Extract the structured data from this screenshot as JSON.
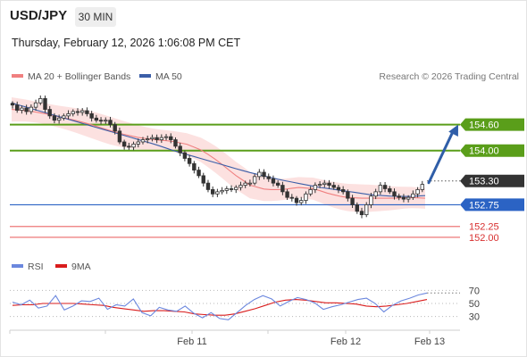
{
  "header": {
    "symbol": "USD/JPY",
    "timeframe": "30 MIN",
    "datetime": "Thursday, February 12, 2026 1:06:08 PM CET",
    "copyright": "Research © 2026 Trading Central"
  },
  "colors": {
    "candle": "#333333",
    "bollinger_band": "#fbd7d5",
    "ma20": "#f08080",
    "ma50": "#3b5ea8",
    "resistance": "#5a9e1a",
    "pivot": "#2b63c4",
    "support": "#ee7878",
    "last_price_label": "#333333",
    "forecast_arrow": "#2f5ea8",
    "rsi": "#6b87de",
    "rsi_ma": "#d91c1c"
  },
  "chart_data": [
    {
      "type": "candlestick",
      "title": "",
      "legend": [
        {
          "name": "MA 20 + Bollinger Bands",
          "color": "#f08080"
        },
        {
          "name": "MA 50",
          "color": "#3b5ea8"
        }
      ],
      "legend_placement": "top-left",
      "x_ticks": [
        "Feb 11",
        "Feb 12",
        "Feb 13"
      ],
      "ylim": [
        151.75,
        155.25
      ],
      "y_tick_labels": [
        "154.60",
        "154.00",
        "153.30",
        "152.75",
        "152.25",
        "152.00"
      ],
      "last_price": 153.3,
      "price_path": [
        155.05,
        154.93,
        154.98,
        154.9,
        155.0,
        155.1,
        155.2,
        154.95,
        154.8,
        154.7,
        154.75,
        154.8,
        154.85,
        154.9,
        154.88,
        154.92,
        154.85,
        154.75,
        154.7,
        154.68,
        154.7,
        154.6,
        154.45,
        154.2,
        154.1,
        154.08,
        154.15,
        154.2,
        154.25,
        154.27,
        154.3,
        154.25,
        154.3,
        154.32,
        154.25,
        154.1,
        153.95,
        153.82,
        153.7,
        153.55,
        153.42,
        153.25,
        153.1,
        153.0,
        153.05,
        153.08,
        153.12,
        153.1,
        153.15,
        153.2,
        153.25,
        153.25,
        153.4,
        153.5,
        153.4,
        153.35,
        153.25,
        153.2,
        153.05,
        152.92,
        152.9,
        152.8,
        152.85,
        153.0,
        153.1,
        153.2,
        153.22,
        153.25,
        153.2,
        153.15,
        153.1,
        153.05,
        152.9,
        152.75,
        152.6,
        152.52,
        152.75,
        152.95,
        153.05,
        153.2,
        153.12,
        153.05,
        152.95,
        152.92,
        152.88,
        152.92,
        153.0,
        153.1,
        153.22
      ],
      "forecast": {
        "from": 153.3,
        "to": 154.6,
        "direction": "up"
      },
      "series": [
        {
          "name": "MA 50",
          "values": [
            155.1,
            154.98,
            154.86,
            154.74,
            154.62,
            154.5,
            154.38,
            154.26,
            154.14,
            154.0,
            153.88,
            153.76,
            153.64,
            153.52,
            153.42,
            153.32,
            153.24,
            153.16,
            153.1,
            153.04,
            152.98,
            152.95,
            152.94,
            152.96
          ]
        },
        {
          "name": "MA 20",
          "values": [
            154.95,
            154.92,
            154.86,
            154.78,
            154.7,
            154.6,
            154.48,
            154.38,
            154.3,
            154.25,
            154.22,
            154.15,
            154.0,
            153.75,
            153.45,
            153.2,
            153.1,
            153.1,
            153.15,
            153.12,
            153.0,
            152.92,
            152.9,
            152.9,
            152.9,
            152.92,
            152.9
          ]
        }
      ],
      "levels": [
        {
          "label": "154.60",
          "value": 154.6,
          "role": "resistance"
        },
        {
          "label": "154.00",
          "value": 154.0,
          "role": "resistance"
        },
        {
          "label": "152.75",
          "value": 152.75,
          "role": "pivot"
        },
        {
          "label": "152.25",
          "value": 152.25,
          "role": "support"
        },
        {
          "label": "152.00",
          "value": 152.0,
          "role": "support"
        }
      ]
    },
    {
      "type": "line",
      "title": "",
      "legend": [
        {
          "name": "RSI",
          "color": "#6b87de"
        },
        {
          "name": "9MA",
          "color": "#d91c1c"
        }
      ],
      "ylim": [
        20,
        80
      ],
      "y_ticks": [
        70,
        50,
        30
      ],
      "series": [
        {
          "name": "RSI",
          "values": [
            52,
            48,
            55,
            43,
            46,
            62,
            40,
            46,
            54,
            53,
            58,
            41,
            48,
            46,
            57,
            36,
            31,
            44,
            40,
            38,
            46,
            35,
            28,
            36,
            27,
            25,
            36,
            47,
            56,
            62,
            57,
            46,
            53,
            59,
            56,
            51,
            41,
            45,
            48,
            52,
            56,
            58,
            50,
            37,
            47,
            54,
            58,
            63,
            66
          ]
        },
        {
          "name": "9MA",
          "values": [
            47,
            48,
            48,
            50,
            50,
            50,
            50,
            49,
            48,
            47,
            44,
            42,
            40,
            38,
            39,
            39,
            38,
            37,
            34,
            33,
            32,
            32,
            34,
            38,
            42,
            47,
            52,
            55,
            56,
            55,
            53,
            51,
            51,
            50,
            49,
            46,
            45,
            46,
            48,
            50,
            53,
            56
          ]
        }
      ]
    }
  ]
}
